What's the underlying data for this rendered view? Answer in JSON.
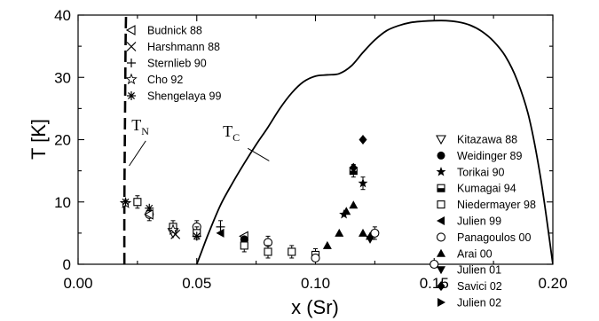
{
  "chart_data": {
    "type": "scatter",
    "title": "",
    "xlabel": "x (Sr)",
    "ylabel": "T [K]",
    "xlim": [
      0.0,
      0.2
    ],
    "ylim": [
      0,
      40
    ],
    "x_ticks": [
      "0.00",
      "0.05",
      "0.10",
      "0.15",
      "0.20"
    ],
    "y_ticks": [
      "0",
      "10",
      "20",
      "30",
      "40"
    ],
    "grid": false,
    "curves": [
      {
        "label": "T",
        "label_sub": "N",
        "style": "dashed",
        "points": [
          [
            0.0195,
            0
          ],
          [
            0.0195,
            10
          ],
          [
            0.0198,
            25
          ],
          [
            0.02,
            35
          ],
          [
            0.0202,
            40
          ]
        ],
        "label_pos": [
          0.0225,
          21.5
        ],
        "leader": [
          [
            0.0285,
            19.8
          ],
          [
            0.0215,
            15.8
          ]
        ]
      },
      {
        "label": "T",
        "label_sub": "C",
        "style": "solid",
        "points": [
          [
            0.05,
            0
          ],
          [
            0.052,
            2
          ],
          [
            0.055,
            5
          ],
          [
            0.06,
            9.5
          ],
          [
            0.065,
            13
          ],
          [
            0.07,
            16.2
          ],
          [
            0.075,
            19.2
          ],
          [
            0.08,
            22
          ],
          [
            0.085,
            25
          ],
          [
            0.09,
            27.5
          ],
          [
            0.095,
            29.3
          ],
          [
            0.1,
            30.2
          ],
          [
            0.105,
            30.4
          ],
          [
            0.11,
            30.6
          ],
          [
            0.115,
            31.8
          ],
          [
            0.12,
            34
          ],
          [
            0.125,
            36
          ],
          [
            0.13,
            37.5
          ],
          [
            0.135,
            38.3
          ],
          [
            0.14,
            38.8
          ],
          [
            0.145,
            39.0
          ],
          [
            0.15,
            39.1
          ],
          [
            0.155,
            39.1
          ],
          [
            0.16,
            38.9
          ],
          [
            0.165,
            38.4
          ],
          [
            0.17,
            37.4
          ],
          [
            0.175,
            35.8
          ],
          [
            0.18,
            33.4
          ],
          [
            0.185,
            29.5
          ],
          [
            0.19,
            23.5
          ],
          [
            0.195,
            13.5
          ],
          [
            0.2,
            0
          ]
        ],
        "label_pos": [
          0.061,
          20.5
        ],
        "leader": [
          [
            0.0715,
            18.6
          ],
          [
            0.0805,
            16.6
          ]
        ]
      }
    ],
    "legend_left": [
      {
        "name": "Budnick 88",
        "marker": "triangle-left-open"
      },
      {
        "name": "Harshmann 88",
        "marker": "x"
      },
      {
        "name": "Sternlieb 90",
        "marker": "plus"
      },
      {
        "name": "Cho 92",
        "marker": "star-open"
      },
      {
        "name": "Shengelaya 99",
        "marker": "asterisk"
      }
    ],
    "legend_right": [
      {
        "name": "Kitazawa 88",
        "marker": "triangle-down-open"
      },
      {
        "name": "Weidinger 89",
        "marker": "circle-filled"
      },
      {
        "name": "Torikai 90",
        "marker": "star-filled"
      },
      {
        "name": "Kumagai 94",
        "marker": "square-half"
      },
      {
        "name": "Niedermayer 98",
        "marker": "square-open"
      },
      {
        "name": "Julien 99",
        "marker": "triangle-left-filled"
      },
      {
        "name": "Panagoulos 00",
        "marker": "circle-open"
      },
      {
        "name": "Arai 00",
        "marker": "triangle-up-filled"
      },
      {
        "name": "Julien 01",
        "marker": "triangle-down-filled"
      },
      {
        "name": "Savici 02",
        "marker": "diamond-filled"
      },
      {
        "name": "Julien 02",
        "marker": "triangle-right-filled"
      }
    ],
    "points": [
      {
        "series": "Cho 92",
        "marker": "star-open",
        "x": 0.02,
        "y": 9.8,
        "err": 0
      },
      {
        "series": "Shengelaya 99",
        "marker": "asterisk",
        "x": 0.02,
        "y": 10.0,
        "err": 0
      },
      {
        "series": "Niedermayer 98",
        "marker": "square-open",
        "x": 0.025,
        "y": 10.0,
        "err": 1.0
      },
      {
        "series": "Panagoulos 00",
        "marker": "circle-open",
        "x": 0.03,
        "y": 8.0,
        "err": 1.0
      },
      {
        "series": "Shengelaya 99",
        "marker": "asterisk",
        "x": 0.03,
        "y": 9.0,
        "err": 0
      },
      {
        "series": "Budnick 88",
        "marker": "triangle-left-open",
        "x": 0.03,
        "y": 8.0,
        "err": 0
      },
      {
        "series": "Niedermayer 98",
        "marker": "square-open",
        "x": 0.04,
        "y": 6.0,
        "err": 1.0
      },
      {
        "series": "Kitazawa 88",
        "marker": "triangle-down-open",
        "x": 0.04,
        "y": 5.0,
        "err": 0
      },
      {
        "series": "Cho 92",
        "marker": "star-open",
        "x": 0.04,
        "y": 5.5,
        "err": 0
      },
      {
        "series": "Harshmann 88",
        "marker": "x",
        "x": 0.041,
        "y": 4.8,
        "err": 0
      },
      {
        "series": "Panagoulos 00",
        "marker": "circle-open",
        "x": 0.05,
        "y": 6.0,
        "err": 1.0
      },
      {
        "series": "Niedermayer 98",
        "marker": "square-open",
        "x": 0.05,
        "y": 5.0,
        "err": 1.0
      },
      {
        "series": "Shengelaya 99",
        "marker": "asterisk",
        "x": 0.05,
        "y": 4.5,
        "err": 0
      },
      {
        "series": "Sternlieb 90",
        "marker": "plus",
        "x": 0.06,
        "y": 6.0,
        "err": 1.0
      },
      {
        "series": "Julien 99",
        "marker": "triangle-left-filled",
        "x": 0.06,
        "y": 5.0,
        "err": 0
      },
      {
        "series": "Budnick 88",
        "marker": "triangle-left-open",
        "x": 0.07,
        "y": 4.5,
        "err": 0
      },
      {
        "series": "Weidinger 89",
        "marker": "circle-filled",
        "x": 0.07,
        "y": 4.0,
        "err": 0
      },
      {
        "series": "Niedermayer 98",
        "marker": "square-open",
        "x": 0.07,
        "y": 3.0,
        "err": 1.0
      },
      {
        "series": "Panagoulos 00",
        "marker": "circle-open",
        "x": 0.08,
        "y": 3.5,
        "err": 1.0
      },
      {
        "series": "Niedermayer 98",
        "marker": "square-open",
        "x": 0.08,
        "y": 2.0,
        "err": 1.0
      },
      {
        "series": "Niedermayer 98",
        "marker": "square-open",
        "x": 0.09,
        "y": 2.0,
        "err": 1.0
      },
      {
        "series": "Niedermayer 98",
        "marker": "square-open",
        "x": 0.1,
        "y": 1.5,
        "err": 1.0
      },
      {
        "series": "Panagoulos 00",
        "marker": "circle-open",
        "x": 0.1,
        "y": 1.0,
        "err": 0
      },
      {
        "series": "Arai 00",
        "marker": "triangle-up-filled",
        "x": 0.105,
        "y": 3.0,
        "err": 0
      },
      {
        "series": "Arai 00",
        "marker": "triangle-up-filled",
        "x": 0.11,
        "y": 5.0,
        "err": 0
      },
      {
        "series": "Torikai 90",
        "marker": "star-filled",
        "x": 0.112,
        "y": 8.0,
        "err": 0
      },
      {
        "series": "Arai 00",
        "marker": "triangle-up-filled",
        "x": 0.113,
        "y": 8.5,
        "err": 0
      },
      {
        "series": "Arai 00",
        "marker": "triangle-up-filled",
        "x": 0.116,
        "y": 9.5,
        "err": 0
      },
      {
        "series": "Kumagai 94",
        "marker": "square-half",
        "x": 0.116,
        "y": 15.0,
        "err": 1.0
      },
      {
        "series": "Savici 02",
        "marker": "diamond-filled",
        "x": 0.116,
        "y": 15.5,
        "err": 0
      },
      {
        "series": "Savici 02",
        "marker": "diamond-filled",
        "x": 0.12,
        "y": 20.0,
        "err": 0
      },
      {
        "series": "Torikai 90",
        "marker": "star-filled",
        "x": 0.12,
        "y": 13.0,
        "err": 1.0
      },
      {
        "series": "Arai 00",
        "marker": "triangle-up-filled",
        "x": 0.12,
        "y": 5.0,
        "err": 0
      },
      {
        "series": "Julien 01",
        "marker": "triangle-down-filled",
        "x": 0.123,
        "y": 4.0,
        "err": 0
      },
      {
        "series": "Arai 00",
        "marker": "triangle-up-filled",
        "x": 0.123,
        "y": 4.5,
        "err": 0
      },
      {
        "series": "Panagoulos 00",
        "marker": "circle-open",
        "x": 0.125,
        "y": 5.0,
        "err": 1.0
      },
      {
        "series": "Panagoulos 00",
        "marker": "circle-open",
        "x": 0.15,
        "y": 0.0,
        "err": 0
      }
    ]
  }
}
